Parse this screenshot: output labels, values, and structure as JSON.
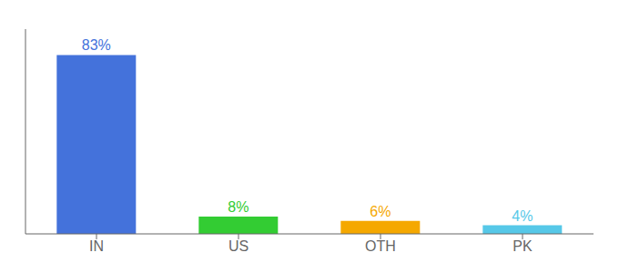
{
  "chart_data": {
    "type": "bar",
    "categories": [
      "IN",
      "US",
      "OTH",
      "PK"
    ],
    "values": [
      83,
      8,
      6,
      4
    ],
    "value_labels": [
      "83%",
      "8%",
      "6%",
      "4%"
    ],
    "colors": [
      "#4472db",
      "#33cc33",
      "#f5a800",
      "#56c8e8"
    ],
    "ylim": [
      0,
      95
    ],
    "data_labels": true,
    "tick_labels": "x",
    "grid": false
  }
}
